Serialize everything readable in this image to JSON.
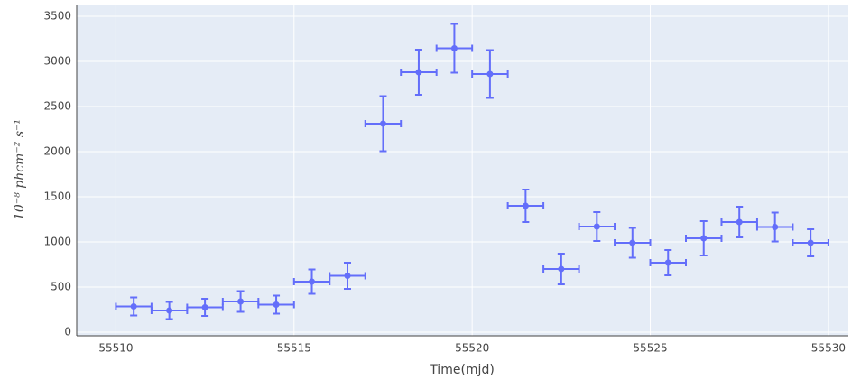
{
  "chart_data": {
    "type": "scatter",
    "xlabel": "Time(mjd)",
    "ylabel": "10⁻⁸ phcm⁻² s⁻¹",
    "x": [
      55510.5,
      55511.5,
      55512.5,
      55513.5,
      55514.5,
      55515.5,
      55516.5,
      55517.5,
      55518.5,
      55519.5,
      55520.5,
      55521.5,
      55522.5,
      55523.5,
      55524.5,
      55525.5,
      55526.5,
      55527.5,
      55528.5,
      55529.5
    ],
    "xerr": [
      0.5,
      0.5,
      0.5,
      0.5,
      0.5,
      0.5,
      0.5,
      0.5,
      0.5,
      0.5,
      0.5,
      0.5,
      0.5,
      0.5,
      0.5,
      0.5,
      0.5,
      0.5,
      0.5,
      0.5
    ],
    "values": [
      285,
      240,
      275,
      340,
      305,
      560,
      625,
      2310,
      2880,
      3145,
      2860,
      1400,
      700,
      1170,
      990,
      770,
      1040,
      1220,
      1165,
      990
    ],
    "yerr": [
      100,
      95,
      95,
      115,
      100,
      135,
      145,
      305,
      250,
      270,
      265,
      180,
      170,
      160,
      165,
      140,
      190,
      170,
      160,
      150
    ],
    "color": "#636efa",
    "xlim": [
      55508.9,
      55530.56
    ],
    "xticks": [
      55510,
      55515,
      55520,
      55525,
      55530
    ],
    "ylim": [
      -40,
      3630
    ],
    "yticks": [
      0,
      500,
      1000,
      1500,
      2000,
      2500,
      3000,
      3500
    ],
    "grid": true
  }
}
